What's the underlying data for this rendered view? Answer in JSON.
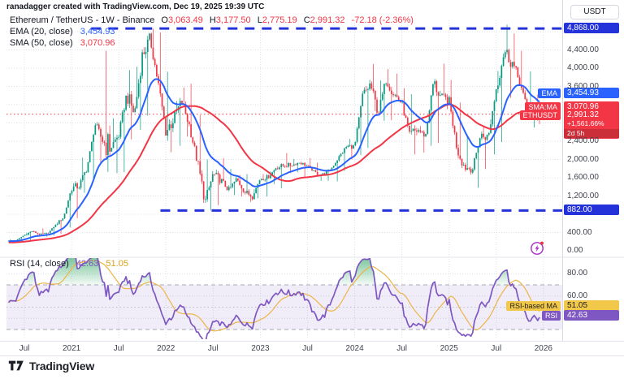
{
  "watermark": "ranadagger created with TradingView.com, Dec 19, 2025 19:39 UTC",
  "header": {
    "symbol": "Ethereum / TetherUS - 1W - Binance",
    "ohlc": {
      "o_label": "O",
      "o": "3,063.49",
      "h_label": "H",
      "h": "3,177.50",
      "l_label": "L",
      "l": "2,775.19",
      "c_label": "C",
      "c": "2,991.32",
      "change": "-72.18 (-2.36%)"
    },
    "ema_label": "EMA (20, close)",
    "ema_value": "3,454.93",
    "sma_label": "SMA (50, close)",
    "sma_value": "3,070.96"
  },
  "rsi_header": {
    "label": "RSI (14, close)",
    "rsi_value": "42.63",
    "ma_value": "51.05"
  },
  "price_axis": {
    "currency": "USDT",
    "ticks": [
      {
        "value": 4400,
        "label": "4,400.00"
      },
      {
        "value": 4000,
        "label": "4,000.00"
      },
      {
        "value": 3600,
        "label": "3,600.00"
      },
      {
        "value": 2400,
        "label": "2,400.00"
      },
      {
        "value": 2000,
        "label": "2,000.00"
      },
      {
        "value": 1600,
        "label": "1,600.00"
      },
      {
        "value": 1200,
        "label": "1,200.00"
      },
      {
        "value": 400,
        "label": "400.00"
      },
      {
        "value": 0,
        "label": "0.00"
      }
    ]
  },
  "rsi_axis": {
    "ticks": [
      {
        "value": 80,
        "label": "80.00"
      },
      {
        "value": 60,
        "label": "60.00"
      }
    ]
  },
  "labels": {
    "ath": {
      "text": "4,868.00",
      "price": 4868
    },
    "support": {
      "text": "882.00",
      "price": 882
    },
    "ema": {
      "tag": "EMA",
      "text": "3,454.93",
      "price": 3454.93
    },
    "sma": {
      "tag": "SMA:MA",
      "text": "3,070.96",
      "price": 3070.96
    },
    "symbol": {
      "tag": "ETHUSDT",
      "price_text": "2,991.32",
      "price": 2991.32,
      "change_pct": "+1,561.66%",
      "countdown": "2d 5h"
    },
    "rsi_ma": {
      "tag": "RSI-based MA",
      "text": "51.05",
      "value": 51.05
    },
    "rsi": {
      "tag": "RSI",
      "text": "42.63",
      "value": 42.63
    }
  },
  "time_axis": {
    "labels": [
      {
        "text": "Jul",
        "month": 0
      },
      {
        "text": "2021",
        "month": 6
      },
      {
        "text": "Jul",
        "month": 12
      },
      {
        "text": "2022",
        "month": 18
      },
      {
        "text": "Jul",
        "month": 24
      },
      {
        "text": "2023",
        "month": 30
      },
      {
        "text": "Jul",
        "month": 36
      },
      {
        "text": "2024",
        "month": 42
      },
      {
        "text": "Jul",
        "month": 48
      },
      {
        "text": "2025",
        "month": 54
      },
      {
        "text": "Jul",
        "month": 60
      },
      {
        "text": "2026",
        "month": 66
      }
    ]
  },
  "footer": {
    "logo_text": "TradingView"
  },
  "chart_data": {
    "type": "candlestick",
    "title": "Ethereum / TetherUS - 1W - Binance",
    "symbol": "ETHUSDT",
    "exchange": "Binance",
    "timeframe": "1W",
    "price_axis_range": [
      0,
      5050
    ],
    "time_range": [
      "2020-05",
      "2026-01"
    ],
    "grid": true,
    "legend_position": "top-left",
    "last_candle": {
      "open": 3063.49,
      "high": 3177.5,
      "low": 2775.19,
      "close": 2991.32,
      "change": -72.18,
      "change_pct": -2.36
    },
    "monthly_anchors": {
      "start_month": "2020-05",
      "end_month": "2025-12",
      "format": [
        "low",
        "high",
        "close"
      ],
      "values": [
        [
          185,
          255,
          225
        ],
        [
          205,
          255,
          232
        ],
        [
          218,
          390,
          345
        ],
        [
          320,
          445,
          430
        ],
        [
          310,
          490,
          355
        ],
        [
          330,
          420,
          385
        ],
        [
          370,
          620,
          575
        ],
        [
          510,
          760,
          735
        ],
        [
          715,
          1480,
          1375
        ],
        [
          1270,
          2040,
          1420
        ],
        [
          1540,
          1945,
          1845
        ],
        [
          1940,
          2800,
          2770
        ],
        [
          1730,
          4380,
          2390
        ],
        [
          1700,
          2900,
          2275
        ],
        [
          1720,
          2560,
          2530
        ],
        [
          2440,
          3960,
          3430
        ],
        [
          2650,
          4030,
          3000
        ],
        [
          2960,
          4460,
          4290
        ],
        [
          3960,
          4868,
          4630
        ],
        [
          3500,
          4780,
          3680
        ],
        [
          2160,
          3920,
          2600
        ],
        [
          2300,
          3280,
          2920
        ],
        [
          2500,
          3580,
          3280
        ],
        [
          2720,
          3660,
          2730
        ],
        [
          1700,
          2970,
          1940
        ],
        [
          880,
          2000,
          1070
        ],
        [
          1000,
          1780,
          1680
        ],
        [
          1420,
          2030,
          1550
        ],
        [
          1220,
          1790,
          1330
        ],
        [
          1190,
          1660,
          1570
        ],
        [
          1070,
          1680,
          1290
        ],
        [
          1150,
          1350,
          1195
        ],
        [
          1190,
          1680,
          1585
        ],
        [
          1460,
          1740,
          1605
        ],
        [
          1370,
          1850,
          1820
        ],
        [
          1700,
          2140,
          1870
        ],
        [
          1720,
          2010,
          1875
        ],
        [
          1620,
          1950,
          1935
        ],
        [
          1820,
          2030,
          1860
        ],
        [
          1530,
          1930,
          1705
        ],
        [
          1530,
          1750,
          1670
        ],
        [
          1520,
          1860,
          1800
        ],
        [
          1750,
          2140,
          2050
        ],
        [
          2000,
          2450,
          2290
        ],
        [
          2100,
          2720,
          2280
        ],
        [
          2250,
          3530,
          3380
        ],
        [
          3060,
          4090,
          3650
        ],
        [
          2850,
          3730,
          3010
        ],
        [
          2860,
          3980,
          3760
        ],
        [
          3240,
          3880,
          3440
        ],
        [
          2820,
          3560,
          3230
        ],
        [
          2110,
          3430,
          2510
        ],
        [
          2150,
          2730,
          2660
        ],
        [
          2300,
          2770,
          2510
        ],
        [
          2360,
          3740,
          3700
        ],
        [
          3100,
          4100,
          3340
        ],
        [
          2920,
          3740,
          3300
        ],
        [
          2080,
          3250,
          2240
        ],
        [
          1760,
          2550,
          1825
        ],
        [
          1380,
          1950,
          1795
        ],
        [
          1790,
          2740,
          2530
        ],
        [
          2110,
          2880,
          2485
        ],
        [
          2380,
          3940,
          3560
        ],
        [
          3350,
          4956,
          4390
        ],
        [
          3830,
          4760,
          4150
        ],
        [
          3435,
          4380,
          3690
        ],
        [
          2700,
          3930,
          3010
        ],
        [
          2775,
          3420,
          2991.32
        ]
      ]
    },
    "overlays": [
      {
        "name": "EMA 20",
        "color": "#2962FF",
        "last_value": 3454.93
      },
      {
        "name": "SMA 50",
        "color": "#F23645",
        "last_value": 3070.96
      }
    ],
    "trendlines": [
      {
        "type": "horizontal-dashed",
        "price": 4868,
        "label": "4,868.00",
        "from_month": 8.5
      },
      {
        "type": "horizontal-dashed",
        "price": 882,
        "label": "882.00",
        "from_month": 17.3
      }
    ],
    "current_price_line": 2991.32,
    "rsi": {
      "period": 14,
      "last": 42.63,
      "ma_period": 14,
      "ma_last": 51.05,
      "levels": [
        70,
        50,
        30
      ],
      "band": [
        30,
        70
      ],
      "axis_ticks": [
        80,
        60
      ]
    },
    "colors": {
      "up": "#089981",
      "down": "#F23645",
      "ema": "#2962FF",
      "sma": "#F23645",
      "trendline": "#2333D9",
      "rsi": "#7E57C2",
      "rsi_ma": "#EDB448",
      "band_fill": "rgba(126,87,194,0.11)",
      "overbought_fill": "#1F9D55"
    }
  }
}
